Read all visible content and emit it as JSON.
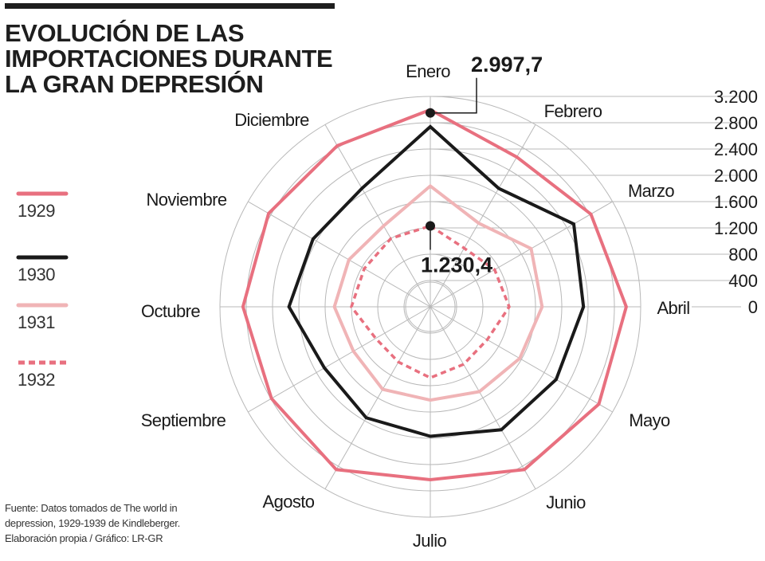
{
  "title_lines": [
    "EVOLUCIÓN DE LAS",
    "IMPORTACIONES DURANTE",
    "LA GRAN DEPRESIÓN"
  ],
  "source_lines": [
    "Fuente: Datos tomados de The world in",
    "depression, 1929-1939 de Kindleberger.",
    "Elaboración propia / Gráfico: LR-GR"
  ],
  "legend": [
    {
      "label": "1929",
      "color": "#e8707f",
      "style": "solid"
    },
    {
      "label": "1930",
      "color": "#1a1a1a",
      "style": "solid"
    },
    {
      "label": "1931",
      "color": "#f0b4b6",
      "style": "solid"
    },
    {
      "label": "1932",
      "color": "#e8707f",
      "style": "dashed"
    }
  ],
  "chart_data": {
    "type": "radar",
    "categories": [
      "Enero",
      "Febrero",
      "Marzo",
      "Abril",
      "Mayo",
      "Junio",
      "Julio",
      "Agosto",
      "Septiembre",
      "Octubre",
      "Noviembre",
      "Diciembre"
    ],
    "rlim": [
      0,
      3200
    ],
    "ticks": [
      "0",
      "400",
      "800",
      "1.200",
      "1.600",
      "2.000",
      "2.400",
      "2.800",
      "3.200"
    ],
    "grid": true,
    "series": [
      {
        "name": "1929",
        "color": "#e8707f",
        "dashed": false,
        "values": [
          2997.7,
          2630,
          2820,
          2980,
          2960,
          2860,
          2630,
          2860,
          2790,
          2850,
          2840,
          2830
        ]
      },
      {
        "name": "1930",
        "color": "#1a1a1a",
        "dashed": false,
        "values": [
          2739,
          2080,
          2520,
          2330,
          2210,
          2160,
          1970,
          1950,
          1860,
          2150,
          2060,
          2080
        ]
      },
      {
        "name": "1931",
        "color": "#f0b4b6",
        "dashed": false,
        "values": [
          1838,
          1470,
          1770,
          1700,
          1570,
          1490,
          1420,
          1450,
          1350,
          1460,
          1430,
          1420
        ]
      },
      {
        "name": "1932",
        "color": "#e8707f",
        "dashed": true,
        "values": [
          1230.4,
          1030,
          1130,
          1200,
          1000,
          1010,
          1080,
          970,
          960,
          1200,
          1160,
          1200
        ]
      }
    ],
    "annotations": [
      {
        "text": "2.997,7",
        "series": "1929",
        "category": "Enero"
      },
      {
        "text": "1.230,4",
        "series": "1932",
        "category": "Enero"
      }
    ]
  }
}
